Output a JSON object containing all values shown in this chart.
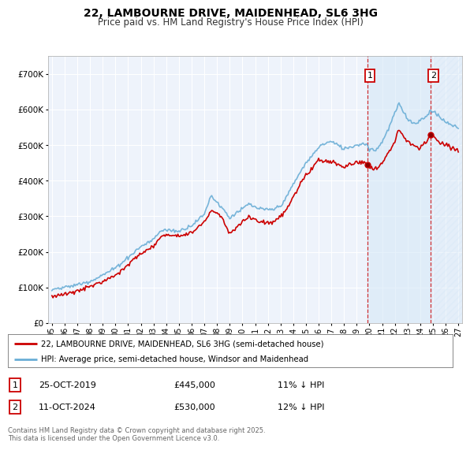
{
  "title": "22, LAMBOURNE DRIVE, MAIDENHEAD, SL6 3HG",
  "subtitle": "Price paid vs. HM Land Registry's House Price Index (HPI)",
  "ylim": [
    0,
    750000
  ],
  "yticks": [
    0,
    100000,
    200000,
    300000,
    400000,
    500000,
    600000,
    700000
  ],
  "background_color": "#ffffff",
  "plot_bg_color": "#eef3fb",
  "grid_color": "#ffffff",
  "hpi_color": "#6aaed6",
  "price_color": "#cc0000",
  "sale1_year": 2019.833,
  "sale1_price": 445000,
  "sale2_year": 2024.833,
  "sale2_price": 530000,
  "legend_label1": "22, LAMBOURNE DRIVE, MAIDENHEAD, SL6 3HG (semi-detached house)",
  "legend_label2": "HPI: Average price, semi-detached house, Windsor and Maidenhead",
  "footnote": "Contains HM Land Registry data © Crown copyright and database right 2025.\nThis data is licensed under the Open Government Licence v3.0.",
  "xstart_year": 1995,
  "xend_year": 2027,
  "hpi_milestones": {
    "1995.0": 95000,
    "1996.0": 100000,
    "1997.0": 108000,
    "1998.0": 118000,
    "1999.0": 135000,
    "2000.0": 155000,
    "2001.0": 185000,
    "2002.0": 215000,
    "2003.0": 235000,
    "2003.5": 258000,
    "2004.0": 262000,
    "2004.5": 260000,
    "2005.0": 258000,
    "2006.0": 275000,
    "2007.0": 305000,
    "2007.5": 358000,
    "2008.0": 340000,
    "2008.5": 320000,
    "2009.0": 295000,
    "2009.5": 310000,
    "2010.0": 320000,
    "2010.5": 335000,
    "2011.0": 325000,
    "2011.5": 320000,
    "2012.0": 318000,
    "2012.5": 320000,
    "2013.0": 330000,
    "2013.5": 355000,
    "2014.0": 390000,
    "2014.5": 420000,
    "2015.0": 450000,
    "2015.5": 470000,
    "2016.0": 495000,
    "2016.5": 505000,
    "2017.0": 510000,
    "2017.5": 500000,
    "2018.0": 490000,
    "2018.5": 495000,
    "2019.0": 500000,
    "2019.5": 505000,
    "2019.833": 500000,
    "2020.0": 490000,
    "2020.5": 485000,
    "2021.0": 510000,
    "2021.5": 545000,
    "2022.0": 590000,
    "2022.3": 615000,
    "2022.5": 605000,
    "2023.0": 575000,
    "2023.5": 560000,
    "2024.0": 570000,
    "2024.5": 580000,
    "2024.833": 600000,
    "2025.0": 595000,
    "2025.5": 580000,
    "2026.0": 565000,
    "2026.5": 555000,
    "2027.0": 550000
  },
  "price_milestones": {
    "1995.0": 75000,
    "1996.0": 80000,
    "1997.0": 90000,
    "1998.0": 102000,
    "1999.0": 118000,
    "2000.0": 135000,
    "2001.0": 165000,
    "2002.0": 195000,
    "2003.0": 215000,
    "2003.5": 240000,
    "2004.0": 250000,
    "2004.5": 248000,
    "2005.0": 245000,
    "2006.0": 255000,
    "2007.0": 285000,
    "2007.5": 315000,
    "2008.0": 310000,
    "2008.5": 290000,
    "2009.0": 250000,
    "2009.5": 270000,
    "2010.0": 285000,
    "2010.5": 295000,
    "2011.0": 290000,
    "2011.5": 285000,
    "2012.0": 280000,
    "2012.5": 285000,
    "2013.0": 300000,
    "2013.5": 320000,
    "2014.0": 355000,
    "2014.5": 385000,
    "2015.0": 415000,
    "2015.5": 435000,
    "2016.0": 460000,
    "2016.5": 455000,
    "2017.0": 450000,
    "2017.5": 445000,
    "2018.0": 440000,
    "2018.5": 445000,
    "2019.0": 450000,
    "2019.5": 455000,
    "2019.833": 445000,
    "2020.0": 435000,
    "2020.5": 430000,
    "2021.0": 450000,
    "2021.5": 480000,
    "2022.0": 510000,
    "2022.3": 545000,
    "2022.5": 535000,
    "2023.0": 510000,
    "2023.5": 498000,
    "2024.0": 490000,
    "2024.5": 510000,
    "2024.833": 530000,
    "2025.0": 525000,
    "2025.5": 510000,
    "2026.0": 500000,
    "2026.5": 490000,
    "2027.0": 485000
  }
}
